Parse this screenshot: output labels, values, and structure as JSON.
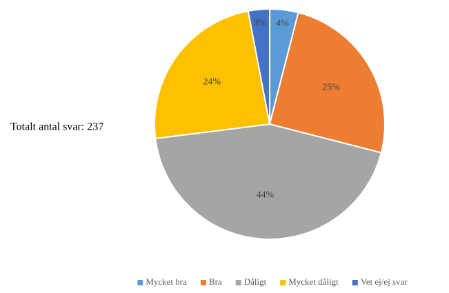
{
  "chart_data": {
    "type": "pie",
    "annotation": "Totalt antal svar: 237",
    "categories": [
      "Mycket bra",
      "Bra",
      "Dåligt",
      "Mycket dåligt",
      "Vet ej/ej svar"
    ],
    "values": [
      4,
      25,
      44,
      24,
      3
    ],
    "value_labels": [
      "4%",
      "25%",
      "44%",
      "24%",
      "3%"
    ],
    "colors": [
      "#5b9bd5",
      "#ed7d31",
      "#a5a5a5",
      "#ffc000",
      "#4472c4"
    ],
    "legend": "bottom"
  }
}
